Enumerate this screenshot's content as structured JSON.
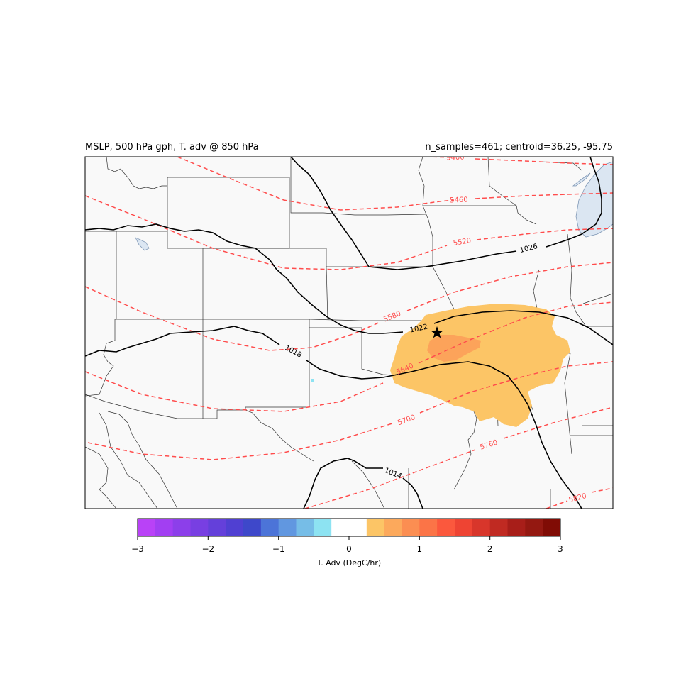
{
  "titles": {
    "left": "MSLP, 500 hPa gph, T. adv @ 850 hPa",
    "right": "n_samples=461; centroid=36.25, -95.75"
  },
  "colors": {
    "land": "#f9f9f9",
    "water": "#dbe6f2",
    "border": "#333333",
    "height_contour": "#ff4d4d",
    "pressure_contour": "#000000",
    "warm_advection_weak": "#fcc566",
    "warm_advection_moderate": "#fca35a"
  },
  "heights_500hpa": {
    "units": "gpm",
    "labels": [
      "5400",
      "5460",
      "5520",
      "5580",
      "5640",
      "5700",
      "5760",
      "5820"
    ]
  },
  "mslp": {
    "units": "hPa",
    "labels": [
      "1026",
      "1022",
      "1018",
      "1014"
    ]
  },
  "centroid_marker": {
    "symbol": "star",
    "lat": 36.25,
    "lon": -95.75
  },
  "colorbar": {
    "label": "T. Adv (DegC/hr)",
    "vmin": -3,
    "vmax": 3,
    "ticks": [
      "−3",
      "−2",
      "−1",
      "0",
      "1",
      "2",
      "3"
    ],
    "colors": [
      "#b942f7",
      "#a23ff2",
      "#8c3fea",
      "#783fe2",
      "#6440da",
      "#5040d2",
      "#3e48ca",
      "#4c74d8",
      "#6197e0",
      "#76bde7",
      "#8de3f2",
      "#ffffff",
      "#ffffff",
      "#fcc566",
      "#fca95c",
      "#fb8e52",
      "#fb7447",
      "#fb583d",
      "#ee4433",
      "#d8362b",
      "#c02a22",
      "#a81e19",
      "#941811",
      "#800c05"
    ]
  }
}
